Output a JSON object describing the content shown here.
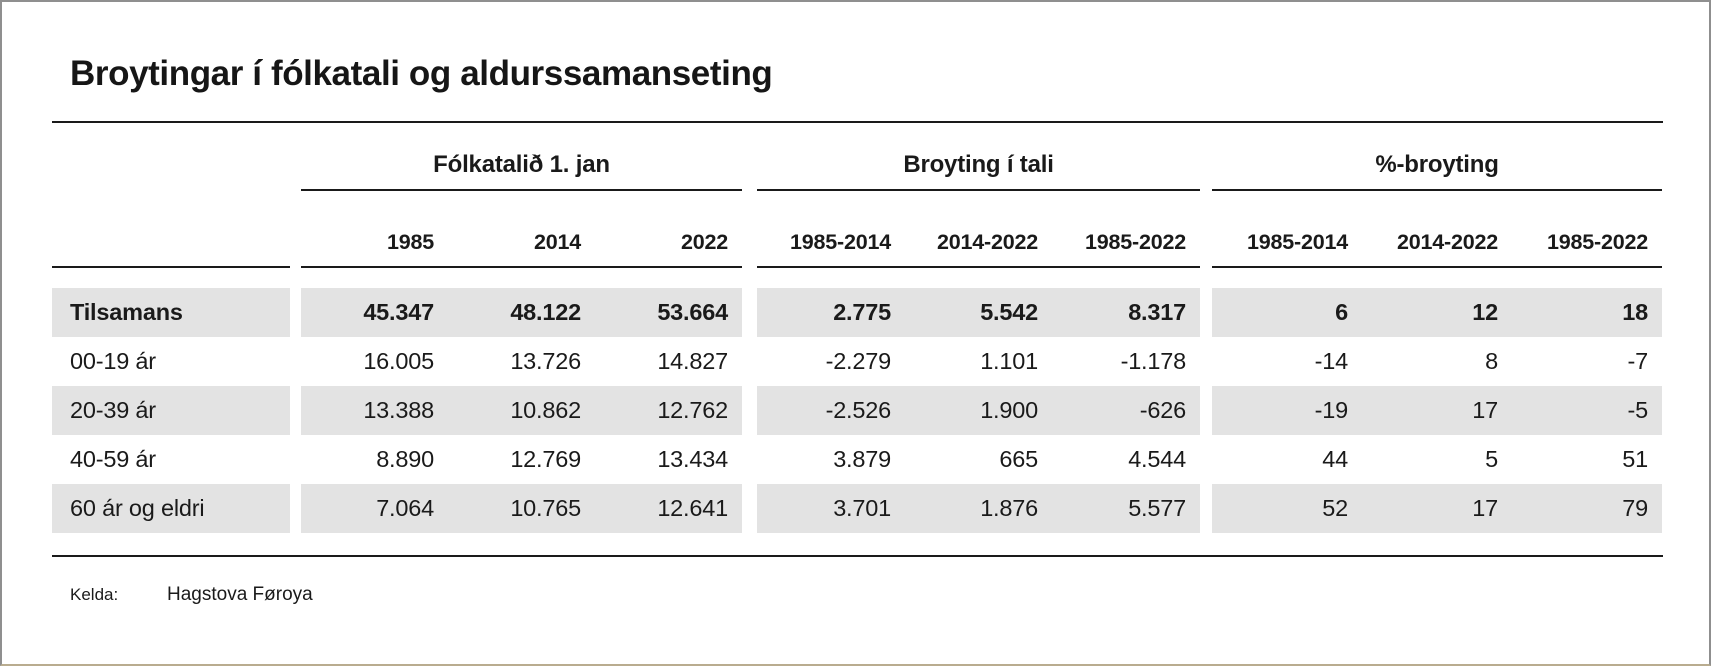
{
  "window": {
    "title": "Broytingar í fólkatali og aldurssamanseting"
  },
  "table": {
    "groups": [
      {
        "label": "Fólkatalið 1. jan",
        "columns": [
          "1985",
          "2014",
          "2022"
        ]
      },
      {
        "label": "Broyting í tali",
        "columns": [
          "1985-2014",
          "2014-2022",
          "1985-2022"
        ]
      },
      {
        "label": "%-broyting",
        "columns": [
          "1985-2014",
          "2014-2022",
          "1985-2022"
        ]
      }
    ],
    "rows": [
      {
        "label": "Tilsamans",
        "values": [
          "45.347",
          "48.122",
          "53.664",
          "2.775",
          "5.542",
          "8.317",
          "6",
          "12",
          "18"
        ]
      },
      {
        "label": "00-19 ár",
        "values": [
          "16.005",
          "13.726",
          "14.827",
          "-2.279",
          "1.101",
          "-1.178",
          "-14",
          "8",
          "-7"
        ]
      },
      {
        "label": "20-39 ár",
        "values": [
          "13.388",
          "10.862",
          "12.762",
          "-2.526",
          "1.900",
          "-626",
          "-19",
          "17",
          "-5"
        ]
      },
      {
        "label": "40-59 ár",
        "values": [
          "8.890",
          "12.769",
          "13.434",
          "3.879",
          "665",
          "4.544",
          "44",
          "5",
          "51"
        ]
      },
      {
        "label": "60 ár og eldri",
        "values": [
          "7.064",
          "10.765",
          "12.641",
          "3.701",
          "1.876",
          "5.577",
          "52",
          "17",
          "79"
        ]
      }
    ]
  },
  "footer": {
    "source_label": "Kelda:",
    "source_value": "Hagstova Føroya"
  },
  "colors": {
    "stripe": "#e3e3e3",
    "rule": "#1a1a1a",
    "text": "#1a1a1a",
    "border": "#8f8f8f"
  },
  "chart_data": {
    "type": "table",
    "title": "Broytingar í fólkatali og aldurssamanseting",
    "column_groups": [
      {
        "title": "Fólkatalið 1. jan",
        "columns": [
          "1985",
          "2014",
          "2022"
        ]
      },
      {
        "title": "Broyting í tali",
        "columns": [
          "1985-2014",
          "2014-2022",
          "1985-2022"
        ]
      },
      {
        "title": "%-broyting",
        "columns": [
          "1985-2014",
          "2014-2022",
          "1985-2022"
        ]
      }
    ],
    "rows": [
      {
        "label": "Tilsamans",
        "folkatal": [
          45347,
          48122,
          53664
        ],
        "broyting_i_tali": [
          2775,
          5542,
          8317
        ],
        "pct_broyting": [
          6,
          12,
          18
        ]
      },
      {
        "label": "00-19 ár",
        "folkatal": [
          16005,
          13726,
          14827
        ],
        "broyting_i_tali": [
          -2279,
          1101,
          -1178
        ],
        "pct_broyting": [
          -14,
          8,
          -7
        ]
      },
      {
        "label": "20-39 ár",
        "folkatal": [
          13388,
          10862,
          12762
        ],
        "broyting_i_tali": [
          -2526,
          1900,
          -626
        ],
        "pct_broyting": [
          -19,
          17,
          -5
        ]
      },
      {
        "label": "40-59 ár",
        "folkatal": [
          8890,
          12769,
          13434
        ],
        "broyting_i_tali": [
          3879,
          665,
          4544
        ],
        "pct_broyting": [
          44,
          5,
          51
        ]
      },
      {
        "label": "60 ár og eldri",
        "folkatal": [
          7064,
          10765,
          12641
        ],
        "broyting_i_tali": [
          3701,
          1876,
          5577
        ],
        "pct_broyting": [
          52,
          17,
          79
        ]
      }
    ],
    "source": "Hagstova Føroya"
  }
}
